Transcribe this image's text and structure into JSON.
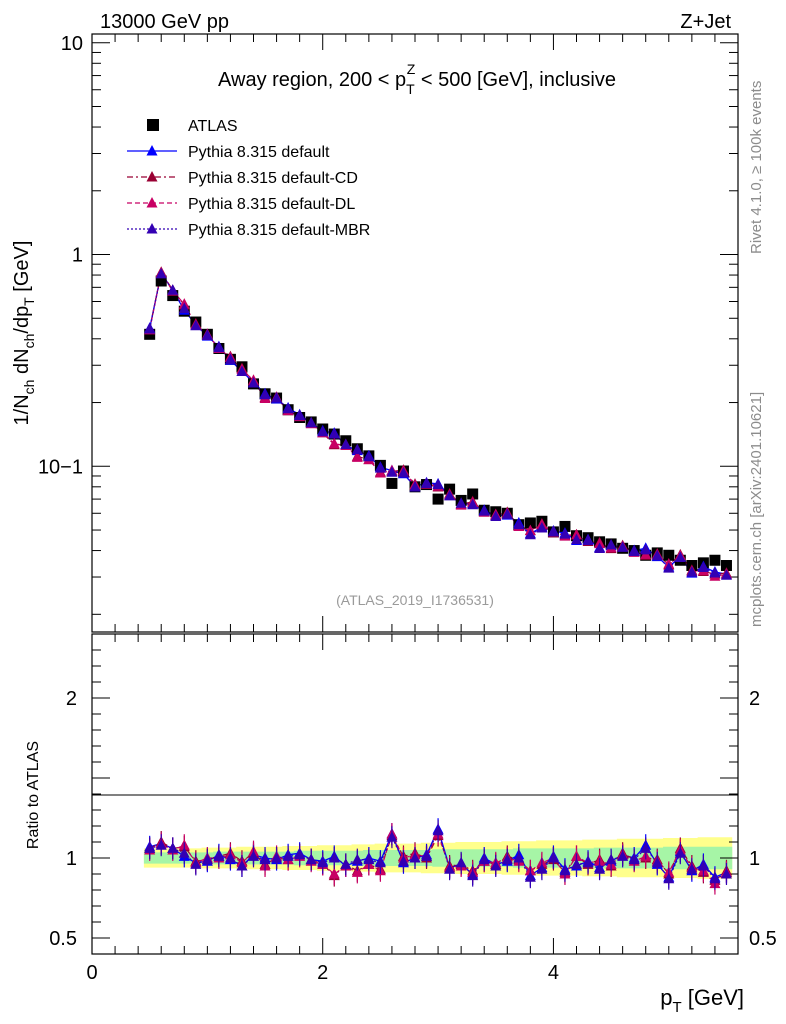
{
  "header": {
    "energy_label": "13000 GeV pp",
    "process_label": "Z+Jet"
  },
  "side": {
    "rivet": "Rivet 4.1.0, ≥ 100k events",
    "source": "mcplots.cern.ch [arXiv:2401.10621]"
  },
  "chart_data": [
    {
      "type": "scatter",
      "panel": "main",
      "title": "Away region, 200 < p_T^Z < 500 [GeV], inclusive",
      "title_parts": {
        "pre": "Away region, 200 < p",
        "sub": "T",
        "sup": "Z",
        "post": " < 500 [GeV], inclusive"
      },
      "analysis_id": "(ATLAS_2019_I1736531)",
      "ylabel": "1/N_ch dN_ch/dp_T [GeV]",
      "yscale": "log",
      "ylim": [
        0.0165,
        11
      ],
      "xlim": [
        0,
        5.6
      ],
      "yticks": [
        {
          "v": 10,
          "label": "10"
        },
        {
          "v": 1,
          "label": "1"
        },
        {
          "v": 0.1,
          "label": "10−1"
        }
      ],
      "legend": [
        "ATLAS",
        "Pythia 8.315 default",
        "Pythia 8.315 default-CD",
        "Pythia 8.315 default-DL",
        "Pythia 8.315 default-MBR"
      ],
      "x": [
        0.5,
        0.6,
        0.7,
        0.8,
        0.9,
        1.0,
        1.1,
        1.2,
        1.3,
        1.4,
        1.5,
        1.6,
        1.7,
        1.8,
        1.9,
        2.0,
        2.1,
        2.2,
        2.3,
        2.4,
        2.5,
        2.6,
        2.7,
        2.8,
        2.9,
        3.0,
        3.1,
        3.2,
        3.3,
        3.4,
        3.5,
        3.6,
        3.7,
        3.8,
        3.9,
        4.0,
        4.1,
        4.2,
        4.3,
        4.4,
        4.5,
        4.6,
        4.7,
        4.8,
        4.9,
        5.0,
        5.1,
        5.2,
        5.3,
        5.4,
        5.5
      ],
      "atlas": [
        0.42,
        0.75,
        0.64,
        0.54,
        0.48,
        0.42,
        0.36,
        0.32,
        0.295,
        0.245,
        0.22,
        0.21,
        0.185,
        0.17,
        0.162,
        0.15,
        0.142,
        0.132,
        0.121,
        0.112,
        0.101,
        0.083,
        0.095,
        0.08,
        0.082,
        0.07,
        0.078,
        0.069,
        0.074,
        0.062,
        0.061,
        0.06,
        0.053,
        0.054,
        0.055,
        0.049,
        0.052,
        0.047,
        0.046,
        0.044,
        0.043,
        0.041,
        0.04,
        0.038,
        0.039,
        0.038,
        0.036,
        0.034,
        0.035,
        0.036,
        0.034
      ],
      "ratio": {
        "default": [
          1.07,
          1.09,
          1.06,
          1.01,
          0.97,
          0.98,
          1.02,
          0.99,
          0.95,
          1.02,
          1.0,
          0.99,
          1.02,
          1.03,
          0.99,
          0.98,
          1.01,
          0.95,
          0.98,
          1.0,
          0.98,
          1.15,
          0.97,
          1.0,
          1.02,
          1.18,
          0.94,
          0.96,
          0.9,
          1.0,
          0.96,
          0.98,
          1.02,
          0.89,
          0.94,
          1.01,
          0.93,
          0.95,
          0.98,
          0.94,
          0.98,
          1.02,
          1.0,
          1.08,
          0.96,
          0.88,
          1.04,
          0.92,
          0.96,
          0.88,
          0.91
        ],
        "cd": [
          1.06,
          1.1,
          1.06,
          1.07,
          0.98,
          0.99,
          1.01,
          1.03,
          0.98,
          1.03,
          0.96,
          1.0,
          0.99,
          1.02,
          0.99,
          0.96,
          0.89,
          0.96,
          0.92,
          0.96,
          0.93,
          1.14,
          1.01,
          1.03,
          1.0,
          1.14,
          0.95,
          0.96,
          0.92,
          0.98,
          0.96,
          1.01,
          0.99,
          0.92,
          0.96,
          0.99,
          0.91,
          1.01,
          0.96,
          0.99,
          0.95,
          1.03,
          0.99,
          1.0,
          0.99,
          0.9,
          1.06,
          0.95,
          0.91,
          0.86,
          0.92
        ],
        "dl": [
          1.05,
          1.09,
          1.05,
          1.08,
          0.97,
          1.0,
          1.0,
          1.02,
          0.97,
          1.04,
          0.95,
          1.01,
          0.99,
          1.01,
          0.98,
          0.96,
          0.9,
          0.95,
          0.91,
          0.96,
          0.92,
          1.15,
          1.0,
          1.02,
          1.01,
          1.15,
          0.94,
          0.95,
          0.91,
          0.98,
          0.97,
          1.0,
          0.98,
          0.92,
          0.97,
          1.0,
          0.9,
          1.01,
          0.97,
          0.98,
          0.96,
          1.02,
          0.98,
          1.01,
          0.98,
          0.91,
          1.05,
          0.94,
          0.92,
          0.84,
          0.91
        ],
        "mbr": [
          1.06,
          1.08,
          1.06,
          1.03,
          0.96,
          0.99,
          1.01,
          1.0,
          0.95,
          1.01,
          0.99,
          1.0,
          1.01,
          1.02,
          0.99,
          0.97,
          1.0,
          0.96,
          0.99,
          0.99,
          0.97,
          1.13,
          0.98,
          1.0,
          1.01,
          1.17,
          0.93,
          0.97,
          0.89,
          0.99,
          0.95,
          0.99,
          1.0,
          0.88,
          0.93,
          1.0,
          0.92,
          0.96,
          0.97,
          0.93,
          0.99,
          1.01,
          0.99,
          1.06,
          0.97,
          0.87,
          1.03,
          0.93,
          0.95,
          0.87,
          0.9
        ]
      }
    },
    {
      "type": "scatter",
      "panel": "ratio",
      "ylabel": "Ratio to ATLAS",
      "xlabel": "p_T [GeV]",
      "xlabel_parts": {
        "main": "p",
        "sub": "T",
        "rest": " [GeV]"
      },
      "ylim": [
        0.4,
        2.4
      ],
      "xlim": [
        0,
        5.6
      ],
      "xticks": [
        {
          "v": 0,
          "label": "0"
        },
        {
          "v": 2,
          "label": "2"
        },
        {
          "v": 4,
          "label": "4"
        }
      ],
      "yticks": [
        {
          "v": 2,
          "label": "2"
        },
        {
          "v": 1,
          "label": "1"
        },
        {
          "v": 0.5,
          "label": "0.5"
        }
      ],
      "band_green": [
        0.035,
        0.035,
        0.035,
        0.035,
        0.035,
        0.035,
        0.04,
        0.04,
        0.04,
        0.04,
        0.04,
        0.04,
        0.04,
        0.045,
        0.045,
        0.045,
        0.045,
        0.045,
        0.045,
        0.05,
        0.05,
        0.05,
        0.05,
        0.05,
        0.05,
        0.055,
        0.055,
        0.055,
        0.055,
        0.055,
        0.055,
        0.055,
        0.06,
        0.06,
        0.06,
        0.06,
        0.06,
        0.06,
        0.06,
        0.065,
        0.065,
        0.065,
        0.065,
        0.065,
        0.065,
        0.07,
        0.07,
        0.07,
        0.07,
        0.07,
        0.07
      ],
      "band_yellow": [
        0.06,
        0.06,
        0.06,
        0.06,
        0.06,
        0.065,
        0.065,
        0.065,
        0.07,
        0.07,
        0.07,
        0.07,
        0.075,
        0.075,
        0.075,
        0.08,
        0.08,
        0.08,
        0.085,
        0.085,
        0.09,
        0.09,
        0.09,
        0.09,
        0.095,
        0.095,
        0.095,
        0.1,
        0.1,
        0.1,
        0.1,
        0.105,
        0.105,
        0.105,
        0.11,
        0.11,
        0.11,
        0.11,
        0.115,
        0.115,
        0.115,
        0.12,
        0.12,
        0.12,
        0.12,
        0.125,
        0.125,
        0.125,
        0.13,
        0.13,
        0.13
      ]
    }
  ],
  "colors": {
    "default": "#0000ff",
    "cd": "#990033",
    "dl": "#c80064",
    "mbr": "#3300b3",
    "green": "#a6f5a6",
    "yellow": "#ffff8c"
  }
}
